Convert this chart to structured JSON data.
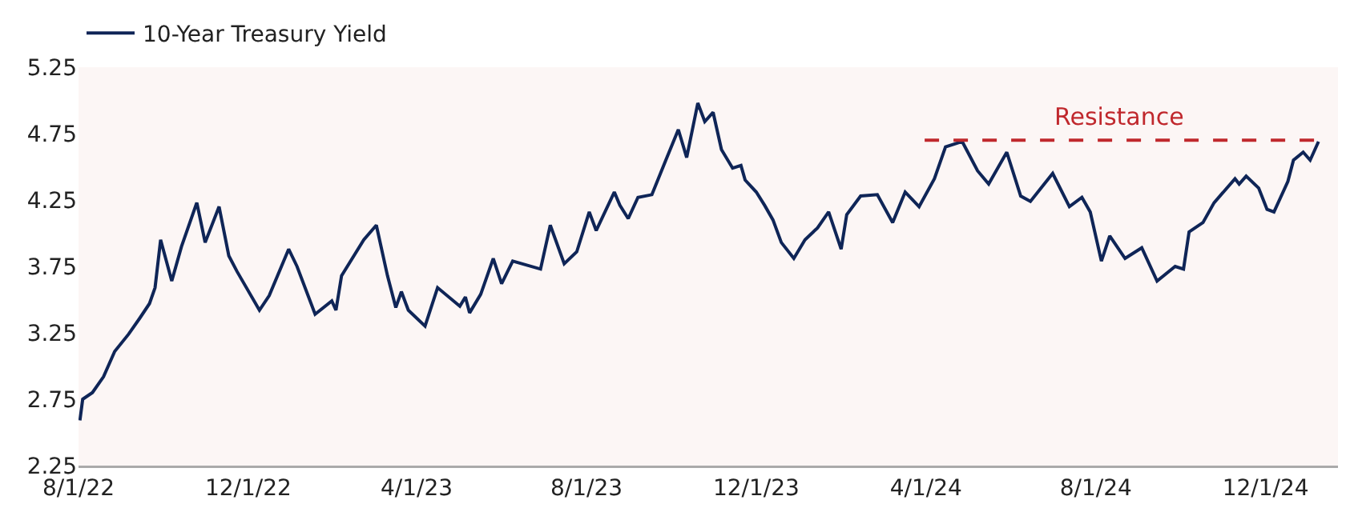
{
  "chart_data": {
    "type": "line",
    "legend": "top left",
    "grid": false,
    "xlim": [
      "2022-08-01",
      "2025-01-22"
    ],
    "xticks": [
      {
        "value": "2022-08-01",
        "label": "8/1/22"
      },
      {
        "value": "2022-12-01",
        "label": "12/1/22"
      },
      {
        "value": "2023-04-01",
        "label": "4/1/23"
      },
      {
        "value": "2023-08-01",
        "label": "8/1/23"
      },
      {
        "value": "2023-12-01",
        "label": "12/1/23"
      },
      {
        "value": "2024-04-01",
        "label": "4/1/24"
      },
      {
        "value": "2024-08-01",
        "label": "8/1/24"
      },
      {
        "value": "2024-12-01",
        "label": "12/1/24"
      }
    ],
    "ylim": [
      2.25,
      5.25
    ],
    "yticks": [
      2.25,
      2.75,
      3.25,
      3.75,
      4.25,
      4.75,
      5.25
    ],
    "series": [
      {
        "name": "10-Year Treasury Yield",
        "color": "#0f2557",
        "line_style": "solid",
        "x": [
          "2022-08-02",
          "2022-08-04",
          "2022-08-11",
          "2022-08-19",
          "2022-08-27",
          "2022-09-06",
          "2022-09-14",
          "2022-09-21",
          "2022-09-25",
          "2022-09-29",
          "2022-10-07",
          "2022-10-14",
          "2022-10-25",
          "2022-10-31",
          "2022-11-10",
          "2022-11-17",
          "2022-11-23",
          "2022-12-09",
          "2022-12-16",
          "2022-12-30",
          "2023-01-05",
          "2023-01-18",
          "2023-01-30",
          "2023-02-02",
          "2023-02-06",
          "2023-02-22",
          "2023-03-03",
          "2023-03-11",
          "2023-03-17",
          "2023-03-21",
          "2023-03-26",
          "2023-04-07",
          "2023-04-16",
          "2023-05-02",
          "2023-05-06",
          "2023-05-09",
          "2023-05-17",
          "2023-05-26",
          "2023-06-01",
          "2023-06-09",
          "2023-06-29",
          "2023-07-06",
          "2023-07-16",
          "2023-07-25",
          "2023-08-03",
          "2023-08-08",
          "2023-08-21",
          "2023-08-25",
          "2023-08-31",
          "2023-09-07",
          "2023-09-17",
          "2023-09-27",
          "2023-10-06",
          "2023-10-12",
          "2023-10-20",
          "2023-10-25",
          "2023-10-31",
          "2023-11-06",
          "2023-11-14",
          "2023-11-20",
          "2023-11-23",
          "2023-12-01",
          "2023-12-07",
          "2023-12-13",
          "2023-12-19",
          "2023-12-28",
          "2024-01-05",
          "2024-01-14",
          "2024-01-22",
          "2024-01-31",
          "2024-02-04",
          "2024-02-14",
          "2024-02-26",
          "2024-03-08",
          "2024-03-17",
          "2024-03-27",
          "2024-04-07",
          "2024-04-15",
          "2024-04-27",
          "2024-05-08",
          "2024-05-16",
          "2024-05-29",
          "2024-06-08",
          "2024-06-15",
          "2024-07-01",
          "2024-07-13",
          "2024-07-22",
          "2024-07-28",
          "2024-08-05",
          "2024-08-11",
          "2024-08-22",
          "2024-09-03",
          "2024-09-14",
          "2024-09-27",
          "2024-10-03",
          "2024-10-07",
          "2024-10-17",
          "2024-10-25",
          "2024-11-09",
          "2024-11-12",
          "2024-11-17",
          "2024-11-26",
          "2024-12-02",
          "2024-12-07",
          "2024-12-17",
          "2024-12-21",
          "2024-12-28",
          "2025-01-02",
          "2025-01-08"
        ],
        "values": [
          2.59,
          2.75,
          2.8,
          2.92,
          3.11,
          3.24,
          3.36,
          3.47,
          3.59,
          3.95,
          3.64,
          3.9,
          4.23,
          3.93,
          4.2,
          3.83,
          3.71,
          3.42,
          3.53,
          3.88,
          3.75,
          3.39,
          3.49,
          3.42,
          3.68,
          3.95,
          4.06,
          3.68,
          3.44,
          3.56,
          3.42,
          3.3,
          3.59,
          3.45,
          3.52,
          3.4,
          3.54,
          3.81,
          3.62,
          3.79,
          3.73,
          4.06,
          3.77,
          3.86,
          4.16,
          4.02,
          4.31,
          4.21,
          4.11,
          4.27,
          4.29,
          4.55,
          4.78,
          4.57,
          4.98,
          4.84,
          4.91,
          4.63,
          4.49,
          4.51,
          4.4,
          4.31,
          4.21,
          4.1,
          3.93,
          3.81,
          3.95,
          4.04,
          4.16,
          3.88,
          4.14,
          4.28,
          4.29,
          4.08,
          4.31,
          4.2,
          4.41,
          4.65,
          4.69,
          4.47,
          4.37,
          4.61,
          4.28,
          4.24,
          4.45,
          4.2,
          4.27,
          4.16,
          3.79,
          3.98,
          3.81,
          3.89,
          3.64,
          3.75,
          3.73,
          4.01,
          4.08,
          4.23,
          4.41,
          4.37,
          4.43,
          4.34,
          4.18,
          4.16,
          4.39,
          4.55,
          4.61,
          4.55,
          4.69
        ]
      },
      {
        "type": "line",
        "color": "#c0282d",
        "line_style": "dashed",
        "x": [
          "2024-03-31",
          "2025-01-08"
        ],
        "values": [
          4.7,
          4.7
        ]
      }
    ],
    "annotations": [
      {
        "text": "Resistance",
        "x": "2024-08-18",
        "y": 4.7
      }
    ]
  }
}
